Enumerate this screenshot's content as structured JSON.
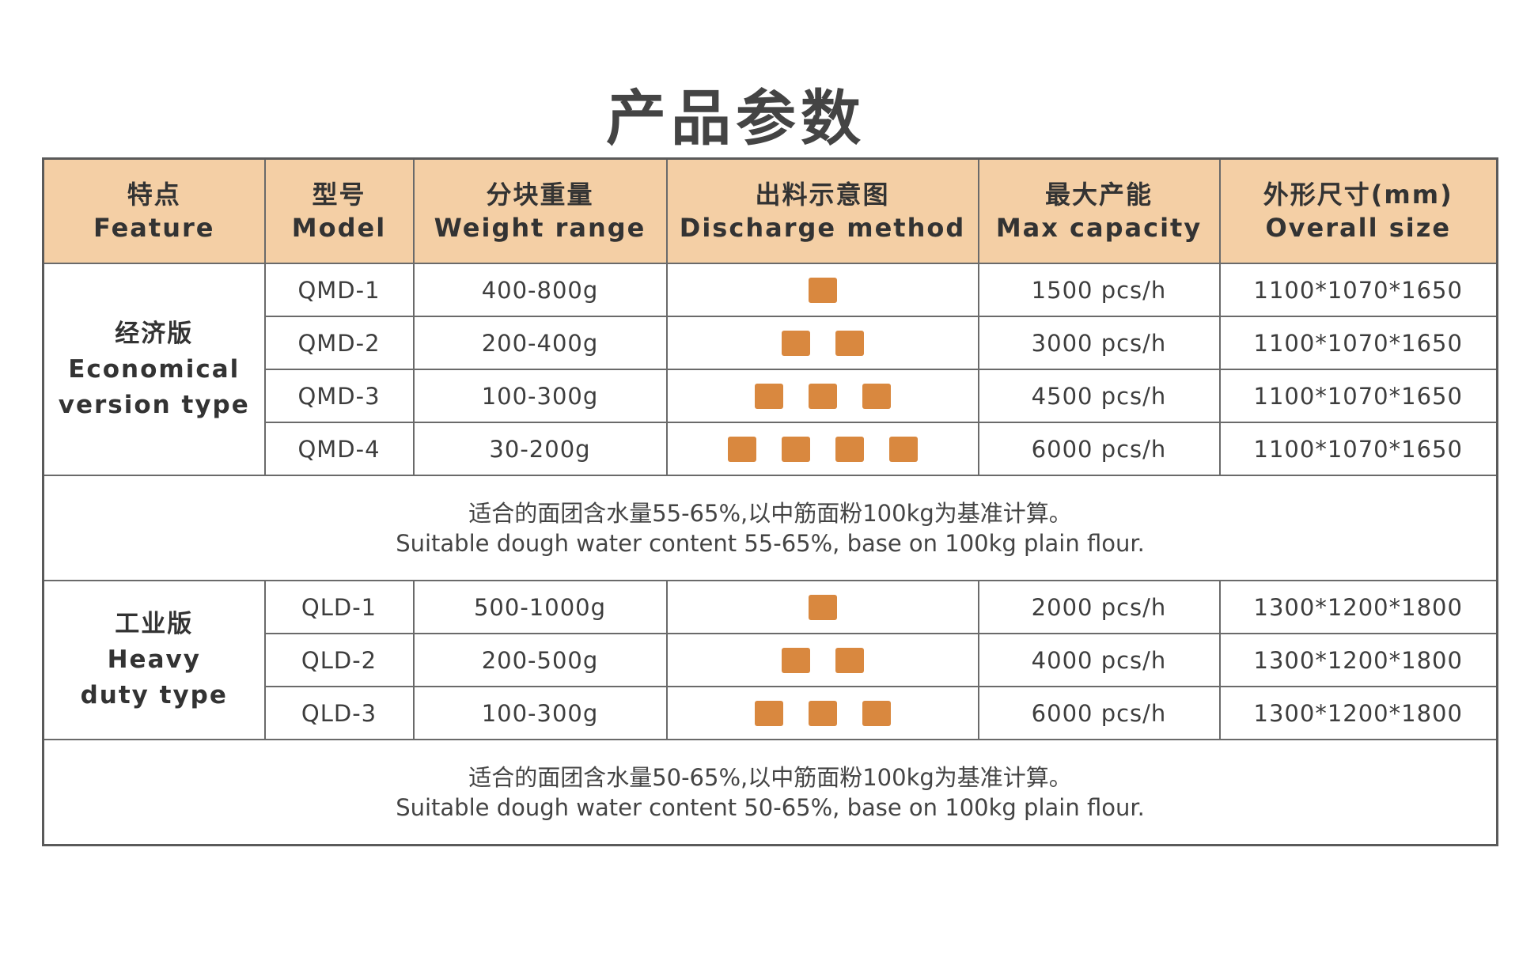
{
  "title": "产品参数",
  "colors": {
    "header_bg": "#f4cfa5",
    "square": "#d9883f",
    "border": "#6a6a6a"
  },
  "headers": [
    {
      "zh": "特点",
      "en": "Feature"
    },
    {
      "zh": "型号",
      "en": "Model"
    },
    {
      "zh": "分块重量",
      "en": "Weight range"
    },
    {
      "zh": "出料示意图",
      "en": "Discharge method"
    },
    {
      "zh": "最大产能",
      "en": "Max capacity"
    },
    {
      "zh": "外形尺寸(mm)",
      "en": "Overall size"
    }
  ],
  "groups": [
    {
      "feature_zh": "经济版",
      "feature_en_1": "Economical",
      "feature_en_2": "version type",
      "rows": [
        {
          "model": "QMD-1",
          "weight": "400-800g",
          "discharge_count": 1,
          "capacity": "1500 pcs/h",
          "size": "1100*1070*1650"
        },
        {
          "model": "QMD-2",
          "weight": "200-400g",
          "discharge_count": 2,
          "capacity": "3000 pcs/h",
          "size": "1100*1070*1650"
        },
        {
          "model": "QMD-3",
          "weight": "100-300g",
          "discharge_count": 3,
          "capacity": "4500 pcs/h",
          "size": "1100*1070*1650"
        },
        {
          "model": "QMD-4",
          "weight": "30-200g",
          "discharge_count": 4,
          "capacity": "6000 pcs/h",
          "size": "1100*1070*1650"
        }
      ],
      "note_zh": "适合的面团含水量55-65%,以中筋面粉100kg为基准计算。",
      "note_en": "Suitable dough water content 55-65%, base on 100kg plain flour."
    },
    {
      "feature_zh": "工业版",
      "feature_en_1": "Heavy",
      "feature_en_2": "duty type",
      "rows": [
        {
          "model": "QLD-1",
          "weight": "500-1000g",
          "discharge_count": 1,
          "capacity": "2000 pcs/h",
          "size": "1300*1200*1800"
        },
        {
          "model": "QLD-2",
          "weight": "200-500g",
          "discharge_count": 2,
          "capacity": "4000 pcs/h",
          "size": "1300*1200*1800"
        },
        {
          "model": "QLD-3",
          "weight": "100-300g",
          "discharge_count": 3,
          "capacity": "6000 pcs/h",
          "size": "1300*1200*1800"
        }
      ],
      "note_zh": "适合的面团含水量50-65%,以中筋面粉100kg为基准计算。",
      "note_en": "Suitable dough water content 50-65%, base on 100kg plain flour."
    }
  ]
}
